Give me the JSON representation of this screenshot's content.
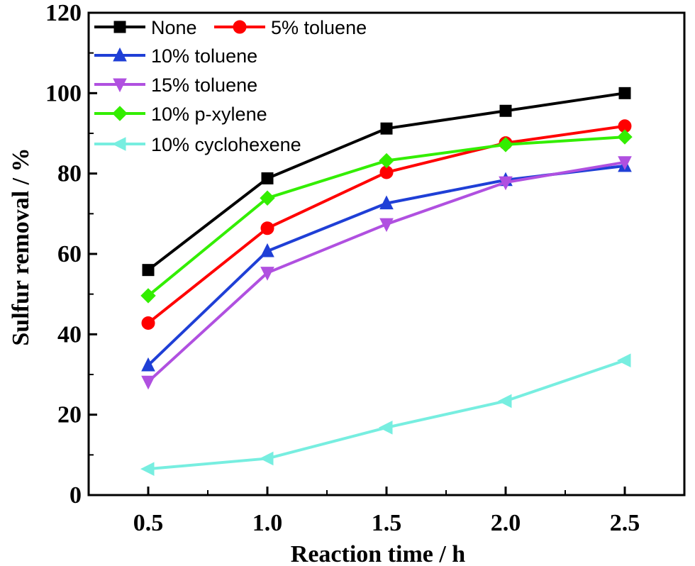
{
  "chart_data": {
    "type": "line",
    "xlabel": "Reaction time / h",
    "ylabel": "Sulfur removal / %",
    "xlim": [
      0.25,
      2.75
    ],
    "ylim": [
      0,
      120
    ],
    "xticks": [
      "0.5",
      "1.0",
      "1.5",
      "2.0",
      "2.5"
    ],
    "yticks": [
      "0",
      "20",
      "40",
      "60",
      "80",
      "100",
      "120"
    ],
    "x": [
      0.5,
      1.0,
      1.5,
      2.0,
      2.5
    ],
    "grid": false,
    "legend_position": "top-left",
    "series": [
      {
        "name": "None",
        "color": "#000000",
        "marker": "square",
        "values": [
          56,
          78.8,
          91.2,
          95.6,
          100
        ]
      },
      {
        "name": "5% toluene",
        "color": "#ff0000",
        "marker": "circle",
        "values": [
          42.8,
          66.4,
          80.3,
          87.6,
          91.8
        ]
      },
      {
        "name": "10% toluene",
        "color": "#1f3fd6",
        "marker": "triangle-up",
        "values": [
          32.3,
          60.7,
          72.6,
          78.4,
          81.9
        ]
      },
      {
        "name": "15% toluene",
        "color": "#b050e0",
        "marker": "triangle-down",
        "values": [
          28.2,
          55.3,
          67.4,
          77.8,
          82.8
        ]
      },
      {
        "name": "10% p-xylene",
        "color": "#33ee00",
        "marker": "diamond",
        "values": [
          49.6,
          73.9,
          83.2,
          87.2,
          89.1
        ]
      },
      {
        "name": "10% cyclohexene",
        "color": "#77eee0",
        "marker": "triangle-left",
        "values": [
          6.5,
          9.1,
          16.8,
          23.4,
          33.5
        ]
      }
    ]
  }
}
